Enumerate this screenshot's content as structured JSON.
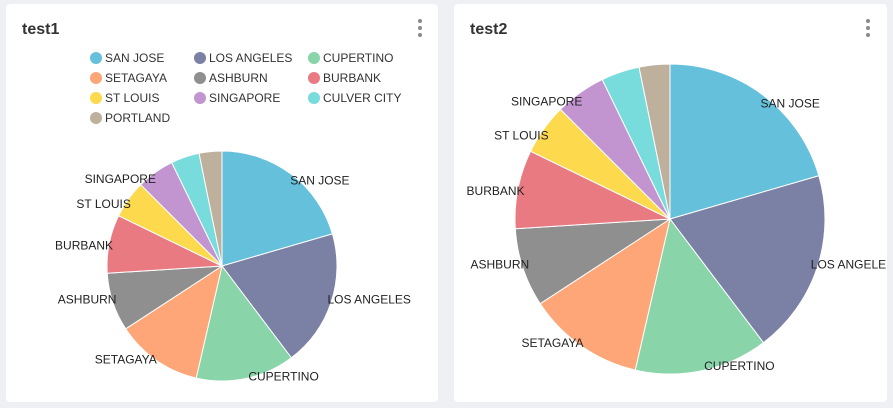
{
  "cards": [
    {
      "title": "test1",
      "menu_icon": "more-vertical-icon"
    },
    {
      "title": "test2",
      "menu_icon": "more-vertical-icon"
    }
  ],
  "colors": {
    "SAN JOSE": "#65c0dc",
    "LOS ANGELES": "#7b80a5",
    "CUPERTINO": "#89d4a8",
    "SETAGAYA": "#fea677",
    "ASHBURN": "#8f8f8f",
    "BURBANK": "#e97a82",
    "ST LOUIS": "#fdd94d",
    "SINGAPORE": "#c295d0",
    "CULVER CITY": "#78dbdc",
    "PORTLAND": "#bfb09e"
  },
  "chart_data": [
    {
      "type": "pie",
      "title": "test1",
      "legend": "top",
      "categories": [
        "SAN JOSE",
        "LOS ANGELES",
        "CUPERTINO",
        "SETAGAYA",
        "ASHBURN",
        "BURBANK",
        "ST LOUIS",
        "SINGAPORE",
        "CULVER CITY",
        "PORTLAND"
      ],
      "values": [
        20.5,
        19.2,
        13.9,
        12.2,
        8.2,
        8.2,
        5.3,
        5.3,
        4.0,
        3.2
      ],
      "labels": [
        "SAN JOSE",
        "LOS ANGELES",
        "CUPERTINO",
        "SETAGAYA",
        "ASHBURN",
        "BURBANK",
        "ST LOUIS",
        "SINGAPORE",
        "",
        ""
      ]
    },
    {
      "type": "pie",
      "title": "test2",
      "legend": "none",
      "categories": [
        "SAN JOSE",
        "LOS ANGELES",
        "CUPERTINO",
        "SETAGAYA",
        "ASHBURN",
        "BURBANK",
        "ST LOUIS",
        "SINGAPORE",
        "CULVER CITY",
        "PORTLAND"
      ],
      "values": [
        20.5,
        19.2,
        13.9,
        12.2,
        8.2,
        8.2,
        5.3,
        5.3,
        4.0,
        3.2
      ],
      "labels": [
        "SAN JOSE",
        "LOS ANGELE",
        "CUPERTINO",
        "SETAGAYA",
        "ASHBURN",
        "BURBANK",
        "ST LOUIS",
        "SINGAPORE",
        "",
        ""
      ]
    }
  ]
}
